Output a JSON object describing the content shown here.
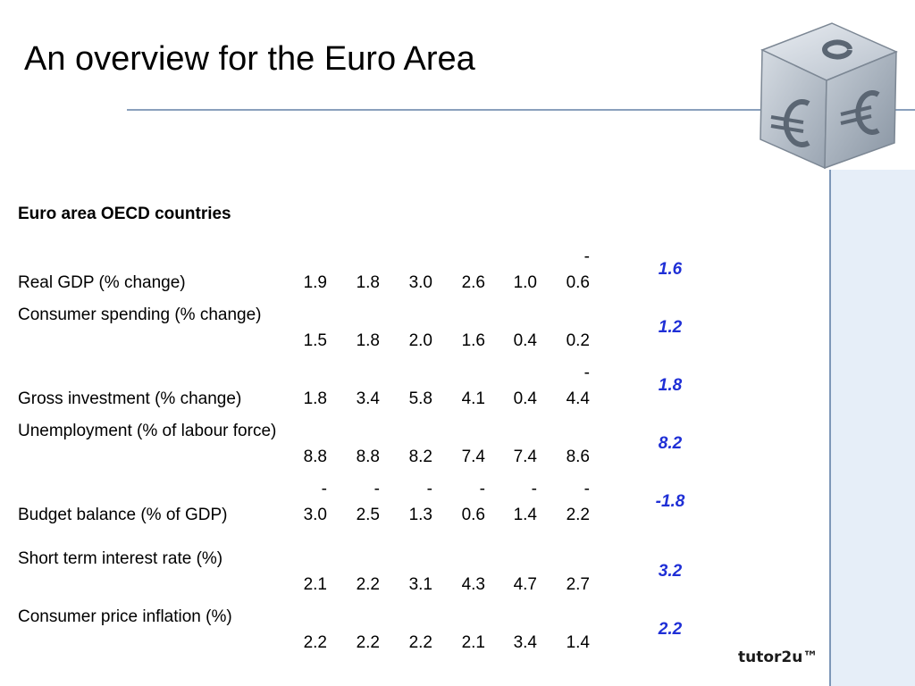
{
  "slide": {
    "title": "An overview for the Euro Area",
    "table_heading": "Euro area OECD countries",
    "brand": "tutor2u™",
    "icon": "euro-cube-icon"
  },
  "colors": {
    "forecast": "#1f2fd6",
    "rule": "#8aa0bc",
    "side_panel": "#e6eef8"
  },
  "rows": [
    {
      "label": "Real GDP (% change)",
      "values": [
        "1.9",
        "1.8",
        "3.0",
        "2.6",
        "1.0",
        "-0.6"
      ],
      "forecast": "1.6"
    },
    {
      "label": "Consumer spending (% change)",
      "values": [
        "1.5",
        "1.8",
        "2.0",
        "1.6",
        "0.4",
        "0.2"
      ],
      "forecast": "1.2"
    },
    {
      "label": "Gross investment (% change)",
      "values": [
        "1.8",
        "3.4",
        "5.8",
        "4.1",
        "0.4",
        "-4.4"
      ],
      "forecast": "1.8"
    },
    {
      "label": "Unemployment (% of labour force)",
      "values": [
        "8.8",
        "8.8",
        "8.2",
        "7.4",
        "7.4",
        "8.6"
      ],
      "forecast": "8.2"
    },
    {
      "label": "Budget balance (% of GDP)",
      "values": [
        "-3.0",
        "-2.5",
        "-1.3",
        "-0.6",
        "-1.4",
        "-2.2"
      ],
      "forecast": "-1.8"
    },
    {
      "label": "Short term interest rate (%)",
      "values": [
        "2.1",
        "2.2",
        "3.1",
        "4.3",
        "4.7",
        "2.7"
      ],
      "forecast": "3.2"
    },
    {
      "label": "Consumer price inflation (%)",
      "values": [
        "2.2",
        "2.2",
        "2.2",
        "2.1",
        "3.4",
        "1.4"
      ],
      "forecast": "2.2"
    }
  ]
}
